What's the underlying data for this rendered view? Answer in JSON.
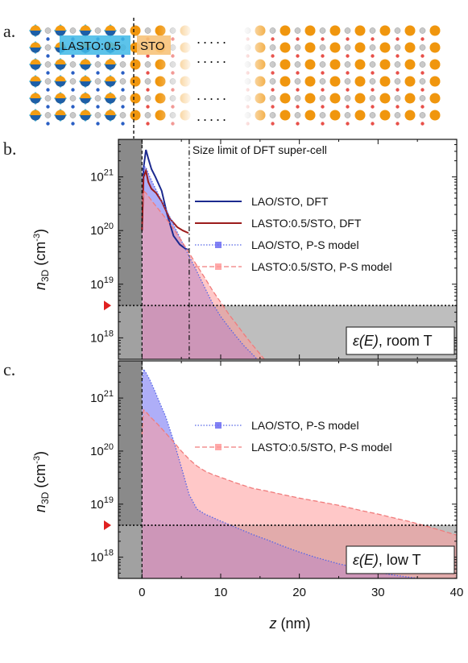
{
  "panel_labels": {
    "a": "a.",
    "b": "b.",
    "c": "c."
  },
  "structure": {
    "left_label": "LASTO:0.5",
    "right_label": "STO",
    "ellipsis": ".....",
    "colors": {
      "blue": "#3fb8e6",
      "orange": "#f0960e",
      "grey": "#c9c9c9"
    }
  },
  "shared_axes": {
    "xlabel_italic": "z",
    "xlabel_unit": " (nm)",
    "ylabel_n": "n",
    "ylabel_sub": "3D",
    "ylabel_unit": " (cm",
    "ylabel_sup": "-3",
    "ylabel_close": ")"
  },
  "chart_data": [
    {
      "panel": "b",
      "type": "area",
      "xlim": [
        -3,
        40
      ],
      "ylim_log10": [
        17.6,
        21.7
      ],
      "yscale": "log",
      "y_ticks": [
        {
          "base": "10",
          "exp": "18"
        },
        {
          "base": "10",
          "exp": "19"
        },
        {
          "base": "10",
          "exp": "20"
        },
        {
          "base": "10",
          "exp": "21"
        }
      ],
      "threshold": 4e+18,
      "annotation": "Size limit of DFT super-cell",
      "dft_limit_x": 6,
      "label_eps": "ε(E)",
      "label_cond": ", room T",
      "series": [
        {
          "name": "LAO/STO,  DFT",
          "style": "solid",
          "color": "#1c2a8f",
          "x": [
            0,
            0.2,
            0.5,
            0.8,
            1.2,
            1.7,
            2.5,
            3.2,
            4,
            4.8,
            5.5,
            5.9
          ],
          "y": [
            1e+20,
            1.5e+21,
            3.2e+21,
            2.2e+21,
            1.4e+21,
            1e+21,
            5.5e+20,
            2e+20,
            8e+19,
            5.5e+19,
            4.6e+19,
            4.4e+19
          ]
        },
        {
          "name": "LASTO:0.5/STO,  DFT",
          "style": "solid",
          "color": "#9c1c1c",
          "x": [
            0,
            0.2,
            0.5,
            0.8,
            1.2,
            1.8,
            2.5,
            3.5,
            4.5,
            5.2,
            5.9
          ],
          "y": [
            1e+20,
            1e+21,
            1.3e+21,
            8e+20,
            6e+20,
            5e+20,
            3.5e+20,
            1.7e+20,
            1.15e+20,
            1e+20,
            9e+19
          ]
        },
        {
          "name": "LAO/STO, P-S model",
          "style": "dotted",
          "color": "#5566e6",
          "fill": "#6b6bf2",
          "x": [
            0,
            0.2,
            0.5,
            1,
            1.5,
            2,
            3,
            4,
            5,
            6,
            7,
            8,
            9,
            10,
            11,
            12,
            13,
            14,
            15,
            16,
            17
          ],
          "y": [
            8e+20,
            1.6e+21,
            1.5e+21,
            1e+21,
            7e+20,
            5e+20,
            2.6e+20,
            1.3e+20,
            6.5e+19,
            3.3e+19,
            1.7e+19,
            8.5e+18,
            4.3e+18,
            2.5e+18,
            1.6e+18,
            1.05e+18,
            7e+17,
            5e+17,
            3.5e+17,
            2.5e+17,
            1.8e+17
          ]
        },
        {
          "name": "LASTO:0.5/STO, P-S model",
          "style": "dashed",
          "color": "#f07c7c",
          "fill": "#ff9a9a",
          "x": [
            0,
            0.2,
            0.5,
            1,
            1.5,
            2,
            3,
            4,
            5,
            6,
            7,
            8,
            9,
            10,
            11,
            12,
            13,
            14,
            15,
            16,
            17
          ],
          "y": [
            3e+20,
            5.5e+20,
            5e+20,
            4e+20,
            3.2e+20,
            2.6e+20,
            1.7e+20,
            1.1e+20,
            6.5e+19,
            3.8e+19,
            2.2e+19,
            1.3e+19,
            7.5e+18,
            4.6e+18,
            2.8e+18,
            1.8e+18,
            1.15e+18,
            7.5e+17,
            5e+17,
            3.3e+17,
            2.2e+17
          ]
        }
      ]
    },
    {
      "panel": "c",
      "type": "area",
      "xlim": [
        -3,
        40
      ],
      "ylim_log10": [
        17.6,
        21.7
      ],
      "yscale": "log",
      "x_ticks": [
        "0",
        "10",
        "20",
        "30",
        "40"
      ],
      "y_ticks": [
        {
          "base": "10",
          "exp": "18"
        },
        {
          "base": "10",
          "exp": "19"
        },
        {
          "base": "10",
          "exp": "20"
        },
        {
          "base": "10",
          "exp": "21"
        }
      ],
      "threshold": 4e+18,
      "label_eps": "ε(E)",
      "label_cond": ", low T",
      "series": [
        {
          "name": "LAO/STO, P-S model",
          "style": "dotted",
          "color": "#5566e6",
          "fill": "#6b6bf2",
          "x": [
            0,
            0.2,
            0.5,
            1,
            1.5,
            2,
            3,
            4,
            5,
            6,
            7,
            8,
            10,
            12,
            14,
            16,
            18,
            20,
            22,
            25,
            28,
            30,
            32,
            35,
            38,
            40
          ],
          "y": [
            2e+21,
            3.5e+21,
            3e+21,
            2.2e+21,
            1.5e+21,
            1e+21,
            4.5e+20,
            1.6e+20,
            5e+19,
            1.5e+19,
            8e+18,
            6.5e+18,
            4.8e+18,
            3.6e+18,
            2.7e+18,
            2.1e+18,
            1.6e+18,
            1.25e+18,
            1e+18,
            7.5e+17,
            6e+17,
            5.2e+17,
            4.6e+17,
            4e+17,
            3.6e+17,
            3.4e+17
          ]
        },
        {
          "name": "LASTO:0.5/STO, P-S model",
          "style": "dashed",
          "color": "#f07c7c",
          "fill": "#ff9a9a",
          "x": [
            0,
            0.2,
            0.5,
            1,
            2,
            3,
            4,
            5,
            6,
            7,
            8,
            9,
            10,
            12,
            14,
            16,
            18,
            20,
            22,
            25,
            28,
            30,
            32,
            34,
            36,
            38,
            40
          ],
          "y": [
            2e+20,
            6e+20,
            5.5e+20,
            4.5e+20,
            3.2e+20,
            2.2e+20,
            1.5e+20,
            1e+20,
            7e+19,
            5.2e+19,
            4.2e+19,
            3.6e+19,
            3.2e+19,
            2.5e+19,
            2e+19,
            1.75e+19,
            1.5e+19,
            1.3e+19,
            1.15e+19,
            9.5e+18,
            7.5e+18,
            6.5e+18,
            5.5e+18,
            4.7e+18,
            3.9e+18,
            3.2e+18,
            2.6e+18
          ]
        }
      ]
    }
  ]
}
